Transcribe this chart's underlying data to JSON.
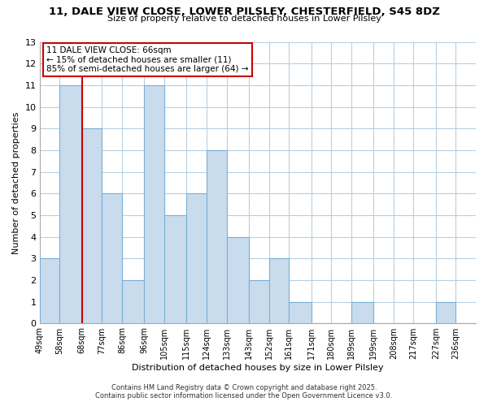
{
  "title": "11, DALE VIEW CLOSE, LOWER PILSLEY, CHESTERFIELD, S45 8DZ",
  "subtitle": "Size of property relative to detached houses in Lower Pilsley",
  "xlabel": "Distribution of detached houses by size in Lower Pilsley",
  "ylabel": "Number of detached properties",
  "bin_labels": [
    "49sqm",
    "58sqm",
    "68sqm",
    "77sqm",
    "86sqm",
    "96sqm",
    "105sqm",
    "115sqm",
    "124sqm",
    "133sqm",
    "143sqm",
    "152sqm",
    "161sqm",
    "171sqm",
    "180sqm",
    "189sqm",
    "199sqm",
    "208sqm",
    "217sqm",
    "227sqm",
    "236sqm"
  ],
  "bin_edges": [
    49,
    58,
    68,
    77,
    86,
    96,
    105,
    115,
    124,
    133,
    143,
    152,
    161,
    171,
    180,
    189,
    199,
    208,
    217,
    227,
    236
  ],
  "bar_heights": [
    3,
    11,
    9,
    6,
    2,
    11,
    5,
    6,
    8,
    4,
    2,
    3,
    1,
    0,
    0,
    1,
    0,
    0,
    0,
    1,
    0
  ],
  "bar_color": "#c9dced",
  "bar_edge_color": "#7aafd4",
  "grid_color": "#b8cfe0",
  "annotation_box_edge": "#cc0000",
  "vertical_line_color": "#cc0000",
  "vertical_line_x": 68,
  "annotation_title": "11 DALE VIEW CLOSE: 66sqm",
  "annotation_line1": "← 15% of detached houses are smaller (11)",
  "annotation_line2": "85% of semi-detached houses are larger (64) →",
  "footer_line1": "Contains HM Land Registry data © Crown copyright and database right 2025.",
  "footer_line2": "Contains public sector information licensed under the Open Government Licence v3.0.",
  "ylim": [
    0,
    13
  ],
  "yticks": [
    0,
    1,
    2,
    3,
    4,
    5,
    6,
    7,
    8,
    9,
    10,
    11,
    12,
    13
  ],
  "background_color": "#ffffff"
}
